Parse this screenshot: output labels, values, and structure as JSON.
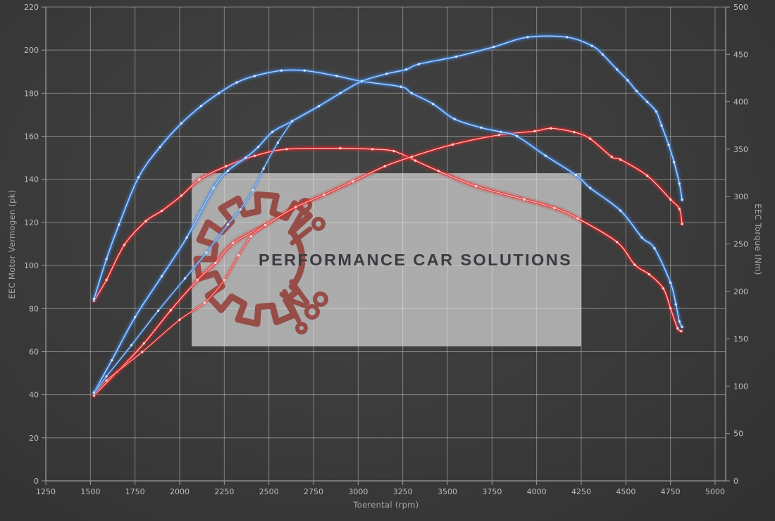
{
  "chart_data": {
    "type": "line",
    "background_color": "#3b3b3b",
    "grid": true,
    "legend": "none",
    "watermark": {
      "text": "PERFORMANCE CAR SOLUTIONS",
      "logo_icon": "gear-circuit-logo",
      "box_color": "#b2b2b2",
      "logo_color": "#94403a",
      "text_color": "#3b3b41"
    },
    "x_axis": {
      "label": "Toerental (rpm)",
      "min": 1250,
      "max": 5000,
      "tick_step": 250,
      "ticks": [
        1250,
        1500,
        1750,
        2000,
        2250,
        2500,
        2750,
        3000,
        3250,
        3500,
        3750,
        4000,
        4250,
        4500,
        4750,
        5000
      ]
    },
    "y_axis_left": {
      "label": "EEC Motor Vermogen (pk)",
      "min": 0,
      "max": 220,
      "tick_step": 20,
      "ticks": [
        0,
        20,
        40,
        60,
        80,
        100,
        120,
        140,
        160,
        180,
        200,
        220
      ]
    },
    "y_axis_right": {
      "label": "EEC Torque (Nm)",
      "min": 0,
      "max": 500,
      "tick_step": 50,
      "ticks": [
        0,
        50,
        100,
        150,
        200,
        250,
        300,
        350,
        400,
        450,
        500
      ]
    },
    "colors": {
      "power_blue": "#3a80d8",
      "torque_red": "#e22424"
    },
    "series": [
      {
        "id": "power-run-a",
        "axis": "left",
        "color": "blue",
        "style": "main",
        "points": [
          [
            1520,
            84.5
          ],
          [
            1590,
            103
          ],
          [
            1660,
            119
          ],
          [
            1770,
            141
          ],
          [
            1890,
            155
          ],
          [
            2010,
            166
          ],
          [
            2120,
            174
          ],
          [
            2220,
            180
          ],
          [
            2320,
            185
          ],
          [
            2420,
            188
          ],
          [
            2570,
            190.5
          ],
          [
            2700,
            190.5
          ],
          [
            2880,
            188
          ],
          [
            3020,
            185.5
          ],
          [
            3240,
            183
          ],
          [
            3300,
            180
          ],
          [
            3420,
            175
          ],
          [
            3540,
            168
          ],
          [
            3690,
            164
          ],
          [
            3800,
            162
          ],
          [
            3890,
            160
          ],
          [
            4050,
            151
          ],
          [
            4220,
            142
          ],
          [
            4300,
            136
          ],
          [
            4470,
            125.5
          ],
          [
            4590,
            113
          ],
          [
            4660,
            108
          ],
          [
            4750,
            92
          ],
          [
            4780,
            82
          ],
          [
            4800,
            74
          ],
          [
            4815,
            71.5
          ]
        ]
      },
      {
        "id": "power-run-b",
        "axis": "left",
        "color": "blue",
        "style": "main",
        "points": [
          [
            1520,
            41
          ],
          [
            1620,
            56
          ],
          [
            1750,
            76
          ],
          [
            1900,
            95
          ],
          [
            2040,
            113
          ],
          [
            2190,
            136
          ],
          [
            2270,
            144
          ],
          [
            2370,
            150
          ],
          [
            2440,
            155
          ],
          [
            2520,
            162
          ],
          [
            2630,
            167
          ],
          [
            2780,
            174
          ],
          [
            2900,
            180
          ],
          [
            3020,
            185.5
          ],
          [
            3160,
            189
          ],
          [
            3270,
            191
          ],
          [
            3340,
            193.5
          ],
          [
            3550,
            197
          ],
          [
            3760,
            201.5
          ],
          [
            3950,
            206
          ],
          [
            4170,
            206
          ],
          [
            4310,
            202
          ],
          [
            4370,
            198
          ],
          [
            4450,
            191
          ],
          [
            4510,
            186
          ],
          [
            4560,
            181
          ],
          [
            4620,
            176
          ],
          [
            4670,
            171.5
          ],
          [
            4700,
            165
          ],
          [
            4740,
            156
          ],
          [
            4770,
            148
          ],
          [
            4800,
            138
          ],
          [
            4815,
            130.5
          ]
        ]
      },
      {
        "id": "power-run-b-branch",
        "axis": "left",
        "color": "blue",
        "style": "branch",
        "points": [
          [
            1520,
            41
          ],
          [
            1590,
            48.5
          ],
          [
            1730,
            63
          ],
          [
            1880,
            79
          ],
          [
            2030,
            94
          ],
          [
            2150,
            106
          ],
          [
            2270,
            119
          ],
          [
            2340,
            126
          ],
          [
            2410,
            135
          ],
          [
            2470,
            145
          ],
          [
            2550,
            157
          ],
          [
            2630,
            167
          ]
        ]
      },
      {
        "id": "torque-run-a",
        "axis": "right",
        "color": "red",
        "style": "main",
        "points": [
          [
            1520,
            190
          ],
          [
            1590,
            212
          ],
          [
            1690,
            249
          ],
          [
            1810,
            274
          ],
          [
            1900,
            285
          ],
          [
            2010,
            301
          ],
          [
            2110,
            318
          ],
          [
            2260,
            332
          ],
          [
            2420,
            343
          ],
          [
            2600,
            350
          ],
          [
            2900,
            351
          ],
          [
            3080,
            350
          ],
          [
            3200,
            348
          ],
          [
            3320,
            338
          ],
          [
            3450,
            327
          ],
          [
            3660,
            311
          ],
          [
            3930,
            297
          ],
          [
            4100,
            288
          ],
          [
            4230,
            277
          ],
          [
            4450,
            252
          ],
          [
            4550,
            228
          ],
          [
            4630,
            218
          ],
          [
            4710,
            203
          ],
          [
            4750,
            182
          ],
          [
            4790,
            161
          ],
          [
            4810,
            158
          ]
        ]
      },
      {
        "id": "torque-run-b",
        "axis": "right",
        "color": "red",
        "style": "main",
        "points": [
          [
            1520,
            90
          ],
          [
            1650,
            115
          ],
          [
            1800,
            145
          ],
          [
            1950,
            180
          ],
          [
            2100,
            212
          ],
          [
            2200,
            230
          ],
          [
            2300,
            251
          ],
          [
            2480,
            270
          ],
          [
            2650,
            289
          ],
          [
            2810,
            302
          ],
          [
            2970,
            316
          ],
          [
            3150,
            332
          ],
          [
            3300,
            342
          ],
          [
            3530,
            355
          ],
          [
            3790,
            365
          ],
          [
            3990,
            369
          ],
          [
            4080,
            372
          ],
          [
            4210,
            368
          ],
          [
            4300,
            361
          ],
          [
            4420,
            342
          ],
          [
            4470,
            339
          ],
          [
            4620,
            322
          ],
          [
            4750,
            297
          ],
          [
            4800,
            287
          ],
          [
            4815,
            271
          ]
        ]
      },
      {
        "id": "torque-run-b-branch",
        "axis": "right",
        "color": "red",
        "style": "branch",
        "points": [
          [
            1520,
            90
          ],
          [
            1590,
            106
          ],
          [
            1790,
            136
          ],
          [
            2000,
            170
          ],
          [
            2140,
            188
          ],
          [
            2250,
            212
          ],
          [
            2330,
            238
          ],
          [
            2400,
            258
          ],
          [
            2480,
            270
          ]
        ]
      }
    ]
  }
}
